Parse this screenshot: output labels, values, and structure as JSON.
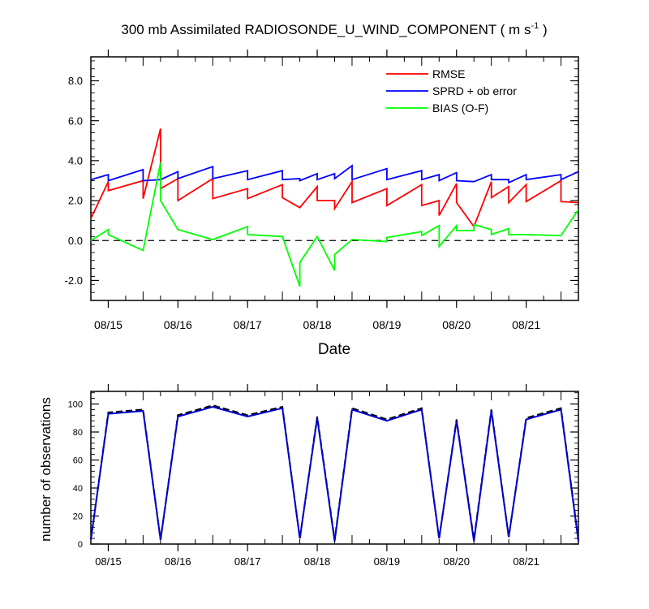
{
  "chart_data": [
    {
      "type": "line",
      "title_main": "300 mb Assimilated RADIOSONDE_U_WIND_COMPONENT ( m s",
      "title_sup": "-1",
      "title_end": " )",
      "xlabel": "Date",
      "ylabel": "",
      "xlim": [
        -0.25,
        6.75
      ],
      "ylim": [
        -3,
        9.2
      ],
      "yticks": [
        8.0,
        6.0,
        4.0,
        2.0,
        0.0,
        -2.0
      ],
      "ytick_labels": [
        "8.0",
        "6.0",
        "4.0",
        "2.0",
        "0.0",
        "-2.0"
      ],
      "xticks": [
        0,
        1,
        2,
        3,
        4,
        5,
        6
      ],
      "xtick_labels": [
        "08/15",
        "08/16",
        "08/17",
        "08/18",
        "08/19",
        "08/20",
        "08/21"
      ],
      "zero_line": 0,
      "legend": [
        "RMSE",
        "SPRD + ob error",
        "BIAS (O-F)"
      ],
      "series": [
        {
          "name": "RMSE",
          "color": "#ff0000",
          "points": [
            [
              -0.25,
              1.1
            ],
            [
              0,
              2.95
            ],
            [
              0,
              2.5
            ],
            [
              0.5,
              3.0
            ],
            [
              0.5,
              2.1
            ],
            [
              0.75,
              5.6
            ],
            [
              0.75,
              2.6
            ],
            [
              1,
              3.1
            ],
            [
              1,
              2.0
            ],
            [
              1.5,
              3.1
            ],
            [
              1.5,
              2.1
            ],
            [
              2,
              2.6
            ],
            [
              2,
              2.1
            ],
            [
              2.5,
              2.8
            ],
            [
              2.5,
              2.15
            ],
            [
              2.75,
              1.65
            ],
            [
              3,
              2.7
            ],
            [
              3,
              2.0
            ],
            [
              3.25,
              2.0
            ],
            [
              3.25,
              1.6
            ],
            [
              3.5,
              2.95
            ],
            [
              3.5,
              1.9
            ],
            [
              4,
              2.6
            ],
            [
              4,
              1.75
            ],
            [
              4.5,
              2.8
            ],
            [
              4.5,
              1.75
            ],
            [
              4.75,
              2.0
            ],
            [
              4.75,
              1.25
            ],
            [
              5,
              2.85
            ],
            [
              5,
              1.9
            ],
            [
              5.25,
              0.7
            ],
            [
              5.5,
              2.95
            ],
            [
              5.5,
              2.15
            ],
            [
              5.75,
              2.7
            ],
            [
              5.75,
              1.9
            ],
            [
              6,
              2.8
            ],
            [
              6,
              1.95
            ],
            [
              6.5,
              3.0
            ],
            [
              6.5,
              1.95
            ],
            [
              6.75,
              1.9
            ]
          ]
        },
        {
          "name": "SPRD + ob error",
          "color": "#0000ff",
          "points": [
            [
              -0.25,
              3.05
            ],
            [
              0,
              3.3
            ],
            [
              0,
              3.0
            ],
            [
              0.5,
              3.55
            ],
            [
              0.5,
              3.0
            ],
            [
              0.75,
              3.05
            ],
            [
              0.75,
              3.05
            ],
            [
              1,
              3.45
            ],
            [
              1,
              3.1
            ],
            [
              1.5,
              3.7
            ],
            [
              1.5,
              3.1
            ],
            [
              2,
              3.5
            ],
            [
              2,
              3.05
            ],
            [
              2.5,
              3.5
            ],
            [
              2.5,
              3.05
            ],
            [
              2.75,
              3.1
            ],
            [
              2.75,
              3.0
            ],
            [
              3,
              3.35
            ],
            [
              3,
              3.05
            ],
            [
              3.25,
              3.35
            ],
            [
              3.25,
              3.1
            ],
            [
              3.5,
              3.75
            ],
            [
              3.5,
              3.05
            ],
            [
              4,
              3.6
            ],
            [
              4,
              3.05
            ],
            [
              4.5,
              3.5
            ],
            [
              4.5,
              3.05
            ],
            [
              4.75,
              3.3
            ],
            [
              4.75,
              3.0
            ],
            [
              5,
              3.4
            ],
            [
              5,
              3.0
            ],
            [
              5.25,
              2.95
            ],
            [
              5.5,
              3.3
            ],
            [
              5.5,
              3.05
            ],
            [
              5.75,
              3.05
            ],
            [
              5.75,
              2.9
            ],
            [
              6,
              3.3
            ],
            [
              6,
              3.05
            ],
            [
              6.5,
              3.3
            ],
            [
              6.5,
              3.05
            ],
            [
              6.75,
              3.45
            ]
          ]
        },
        {
          "name": "BIAS (O-F)",
          "color": "#00ff00",
          "points": [
            [
              -0.25,
              0.0
            ],
            [
              0,
              0.55
            ],
            [
              0,
              0.3
            ],
            [
              0.5,
              -0.5
            ],
            [
              0.75,
              3.9
            ],
            [
              0.75,
              2.0
            ],
            [
              1,
              0.55
            ],
            [
              1.5,
              0.05
            ],
            [
              2,
              0.7
            ],
            [
              2,
              0.3
            ],
            [
              2.5,
              0.2
            ],
            [
              2.75,
              -2.3
            ],
            [
              2.75,
              -1.1
            ],
            [
              3,
              0.2
            ],
            [
              3.25,
              -1.5
            ],
            [
              3.25,
              -0.7
            ],
            [
              3.5,
              0.05
            ],
            [
              4,
              -0.05
            ],
            [
              4,
              0.15
            ],
            [
              4.5,
              0.45
            ],
            [
              4.5,
              0.25
            ],
            [
              4.75,
              0.75
            ],
            [
              4.75,
              -0.3
            ],
            [
              5,
              0.75
            ],
            [
              5,
              0.5
            ],
            [
              5.25,
              0.5
            ],
            [
              5.25,
              0.8
            ],
            [
              5.5,
              0.55
            ],
            [
              5.5,
              0.3
            ],
            [
              5.75,
              0.6
            ],
            [
              5.75,
              0.3
            ],
            [
              6,
              0.3
            ],
            [
              6.5,
              0.25
            ],
            [
              6.75,
              1.55
            ]
          ]
        }
      ]
    },
    {
      "type": "line",
      "title": "",
      "xlabel": "",
      "ylabel": "number of observations",
      "xlim": [
        -0.25,
        6.75
      ],
      "ylim": [
        0,
        109
      ],
      "yticks": [
        0,
        20,
        40,
        60,
        80,
        100
      ],
      "ytick_labels": [
        "0",
        "20",
        "40",
        "60",
        "80",
        "100"
      ],
      "xticks": [
        0,
        1,
        2,
        3,
        4,
        5,
        6
      ],
      "xtick_labels": [
        "08/15",
        "08/16",
        "08/17",
        "08/18",
        "08/19",
        "08/20",
        "08/21"
      ],
      "series": [
        {
          "name": "dashed",
          "color": "#000000",
          "dashed": true,
          "points": [
            [
              -0.25,
              3
            ],
            [
              0,
              94
            ],
            [
              0.5,
              96
            ],
            [
              0.75,
              3
            ],
            [
              1,
              92
            ],
            [
              1.5,
              99
            ],
            [
              2,
              92
            ],
            [
              2.5,
              98
            ],
            [
              2.75,
              4
            ],
            [
              3,
              91
            ],
            [
              3.25,
              3
            ],
            [
              3.5,
              97
            ],
            [
              4,
              89
            ],
            [
              4.5,
              97
            ],
            [
              4.75,
              4
            ],
            [
              5,
              89
            ],
            [
              5.25,
              3
            ],
            [
              5.5,
              96
            ],
            [
              5.75,
              5
            ],
            [
              6,
              90
            ],
            [
              6.5,
              97
            ],
            [
              6.75,
              3
            ]
          ]
        },
        {
          "name": "solid",
          "color": "#0000cd",
          "dashed": false,
          "points": [
            [
              -0.25,
              3
            ],
            [
              0,
              93
            ],
            [
              0.5,
              95
            ],
            [
              0.75,
              3
            ],
            [
              1,
              91
            ],
            [
              1.5,
              98
            ],
            [
              2,
              91
            ],
            [
              2.5,
              97
            ],
            [
              2.75,
              4
            ],
            [
              3,
              90
            ],
            [
              3.25,
              2
            ],
            [
              3.5,
              96
            ],
            [
              4,
              88
            ],
            [
              4.5,
              96
            ],
            [
              4.75,
              4
            ],
            [
              5,
              88
            ],
            [
              5.25,
              2
            ],
            [
              5.5,
              95
            ],
            [
              5.75,
              5
            ],
            [
              6,
              89
            ],
            [
              6.5,
              96
            ],
            [
              6.75,
              2
            ]
          ]
        }
      ]
    }
  ]
}
